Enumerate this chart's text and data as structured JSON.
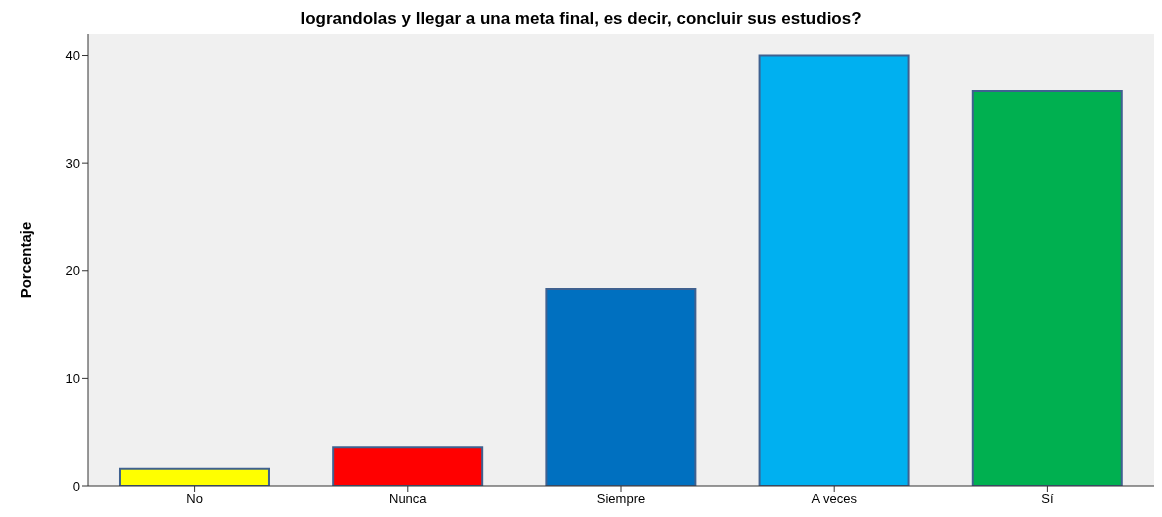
{
  "chart_data": {
    "type": "bar",
    "title": "lograndolas y llegar a una meta final, es decir, concluir sus estudios?",
    "ylabel": "Porcentaje",
    "categories": [
      "No",
      "Nunca",
      "Siempre",
      "A veces",
      "Sí"
    ],
    "values": [
      1.6,
      3.6,
      18.3,
      40.0,
      36.7
    ],
    "colors": [
      "#ffff00",
      "#ff0000",
      "#0070c0",
      "#00b0f0",
      "#00b050"
    ],
    "ylim": [
      0,
      42
    ],
    "yticks": [
      0,
      10,
      20,
      30,
      40
    ],
    "grid": false
  }
}
